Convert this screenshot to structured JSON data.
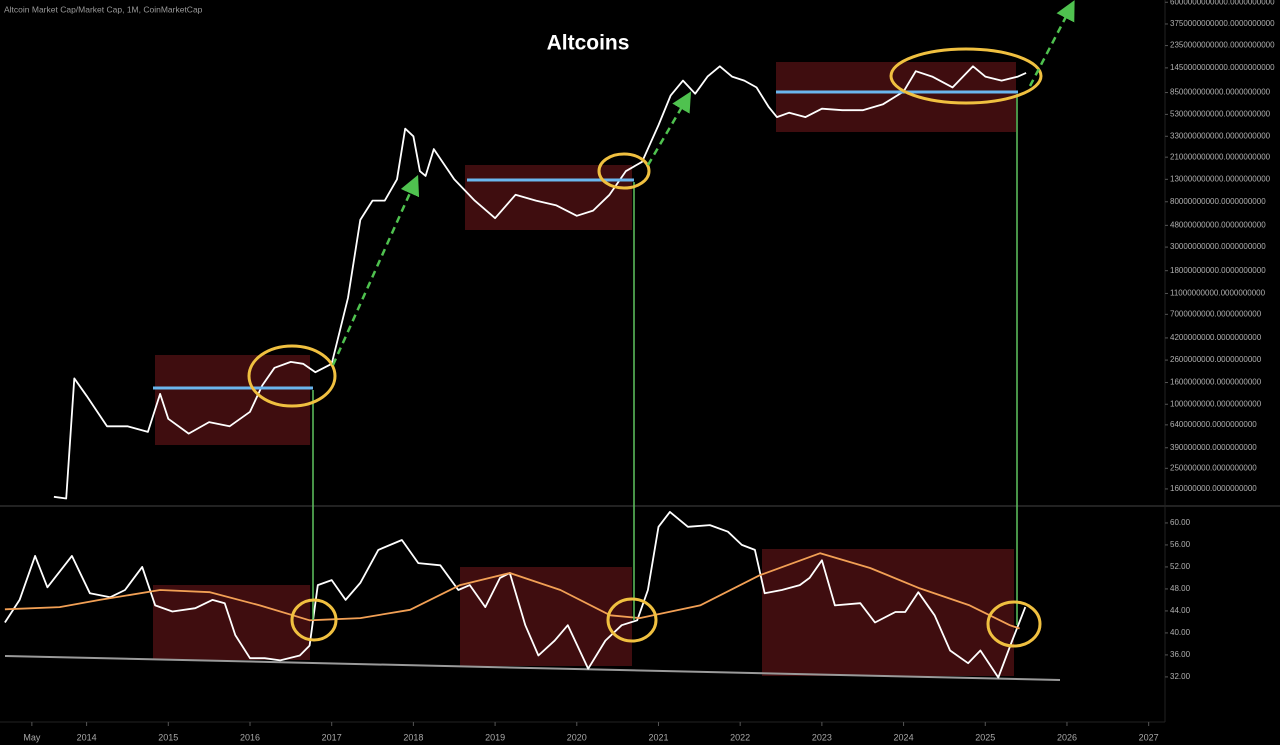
{
  "chart_data": [
    {
      "type": "line",
      "header": "Altcoin Market Cap/Market Cap, 1M, CoinMarketCap",
      "title": "Altcoins",
      "yscale": "log",
      "grid": false,
      "xlim": [
        2012.94,
        2027.2
      ],
      "ylim": [
        113000000,
        6300000000000
      ],
      "yticks": [
        {
          "value": 6000000000000,
          "label": "6000000000000.0000000000"
        },
        {
          "value": 3750000000000,
          "label": "3750000000000.0000000000"
        },
        {
          "value": 2350000000000,
          "label": "2350000000000.0000000000"
        },
        {
          "value": 1450000000000,
          "label": "1450000000000.0000000000"
        },
        {
          "value": 850000000000,
          "label": "850000000000.0000000000"
        },
        {
          "value": 530000000000,
          "label": "530000000000.0000000000"
        },
        {
          "value": 330000000000,
          "label": "330000000000.0000000000"
        },
        {
          "value": 210000000000,
          "label": "210000000000.0000000000"
        },
        {
          "value": 130000000000,
          "label": "130000000000.0000000000"
        },
        {
          "value": 80000000000,
          "label": "80000000000.0000000000"
        },
        {
          "value": 48000000000,
          "label": "48000000000.0000000000"
        },
        {
          "value": 30000000000,
          "label": "30000000000.0000000000"
        },
        {
          "value": 18000000000,
          "label": "18000000000.0000000000"
        },
        {
          "value": 11000000000,
          "label": "11000000000.0000000000"
        },
        {
          "value": 7000000000,
          "label": "7000000000.0000000000"
        },
        {
          "value": 4200000000,
          "label": "4200000000.0000000000"
        },
        {
          "value": 2600000000,
          "label": "2600000000.0000000000"
        },
        {
          "value": 1600000000,
          "label": "1600000000.0000000000"
        },
        {
          "value": 1000000000,
          "label": "1000000000.0000000000"
        },
        {
          "value": 640000000,
          "label": "640000000.0000000000"
        },
        {
          "value": 390000000,
          "label": "390000000.0000000000"
        },
        {
          "value": 250000000,
          "label": "250000000.0000000000"
        },
        {
          "value": 160000000,
          "label": "160000000.0000000000"
        }
      ],
      "series": [
        {
          "color": "#ffffff",
          "x": [
            2013.6,
            2013.75,
            2013.85,
            2014.0,
            2014.25,
            2014.5,
            2014.75,
            2014.9,
            2015.0,
            2015.25,
            2015.5,
            2015.75,
            2016.0,
            2016.15,
            2016.3,
            2016.5,
            2016.65,
            2016.8,
            2017.0,
            2017.2,
            2017.35,
            2017.5,
            2017.65,
            2017.8,
            2017.9,
            2018.0,
            2018.08,
            2018.15,
            2018.25,
            2018.5,
            2018.75,
            2019.0,
            2019.25,
            2019.5,
            2019.75,
            2020.0,
            2020.2,
            2020.4,
            2020.6,
            2020.8,
            2021.0,
            2021.15,
            2021.3,
            2021.45,
            2021.6,
            2021.75,
            2021.9,
            2022.05,
            2022.2,
            2022.35,
            2022.45,
            2022.6,
            2022.8,
            2023.0,
            2023.25,
            2023.5,
            2023.75,
            2024.0,
            2024.15,
            2024.35,
            2024.6,
            2024.85,
            2025.0,
            2025.2,
            2025.4,
            2025.5
          ],
          "values": [
            135000000,
            130000000,
            1750000000,
            1200000000,
            620000000,
            620000000,
            550000000,
            1250000000,
            730000000,
            530000000,
            680000000,
            620000000,
            850000000,
            1500000000,
            2200000000,
            2500000000,
            2400000000,
            2000000000,
            2400000000,
            10000000000,
            54000000000,
            82000000000,
            82000000000,
            130000000000,
            390000000000,
            330000000000,
            155000000000,
            140000000000,
            250000000000,
            130000000000,
            82000000000,
            56000000000,
            93000000000,
            82000000000,
            74000000000,
            59000000000,
            66000000000,
            93000000000,
            155000000000,
            190000000000,
            420000000000,
            800000000000,
            1100000000000,
            830000000000,
            1200000000000,
            1500000000000,
            1200000000000,
            1100000000000,
            950000000000,
            620000000000,
            500000000000,
            550000000000,
            500000000000,
            600000000000,
            580000000000,
            580000000000,
            660000000000,
            870000000000,
            1350000000000,
            1200000000000,
            950000000000,
            1500000000000,
            1200000000000,
            1100000000000,
            1200000000000,
            1300000000000
          ]
        }
      ]
    },
    {
      "type": "line",
      "grid": false,
      "xlim": [
        2012.94,
        2027.2
      ],
      "ylim": [
        23.8,
        62.9
      ],
      "yticks": [
        {
          "value": 60,
          "label": "60.00"
        },
        {
          "value": 56,
          "label": "56.00"
        },
        {
          "value": 52,
          "label": "52.00"
        },
        {
          "value": 48,
          "label": "48.00"
        },
        {
          "value": 44,
          "label": "44.00"
        },
        {
          "value": 40,
          "label": "40.00"
        },
        {
          "value": 36,
          "label": "36.00"
        },
        {
          "value": 32,
          "label": "32.00"
        }
      ],
      "xticks": [
        {
          "value": 2013.33,
          "label": "May"
        },
        2014,
        2015,
        2016,
        2017,
        2018,
        2019,
        2020,
        2021,
        2022,
        2023,
        2024,
        2025,
        2026,
        2027
      ],
      "series": [
        {
          "color": "#ffffff",
          "x": [
            2013.0,
            2013.18,
            2013.37,
            2013.52,
            2013.82,
            2014.04,
            2014.29,
            2014.47,
            2014.68,
            2014.84,
            2015.05,
            2015.33,
            2015.54,
            2015.69,
            2015.82,
            2016.0,
            2016.18,
            2016.37,
            2016.61,
            2016.73,
            2016.83,
            2017.0,
            2017.17,
            2017.35,
            2017.57,
            2017.86,
            2018.06,
            2018.33,
            2018.55,
            2018.69,
            2018.88,
            2019.06,
            2019.18,
            2019.37,
            2019.53,
            2019.73,
            2019.89,
            2020.14,
            2020.35,
            2020.55,
            2020.74,
            2020.87,
            2021.0,
            2021.14,
            2021.36,
            2021.63,
            2021.85,
            2022.02,
            2022.18,
            2022.3,
            2022.51,
            2022.73,
            2022.85,
            2023.0,
            2023.16,
            2023.47,
            2023.65,
            2023.9,
            2024.02,
            2024.18,
            2024.38,
            2024.57,
            2024.79,
            2024.94,
            2025.16,
            2025.33,
            2025.49
          ],
          "values": [
            41.9,
            46.0,
            54.0,
            48.3,
            54.0,
            47.2,
            46.5,
            47.8,
            52.0,
            45.0,
            43.9,
            44.5,
            46.0,
            45.4,
            39.6,
            35.4,
            35.4,
            35.0,
            35.9,
            37.7,
            48.7,
            49.6,
            46.0,
            49.1,
            55.1,
            56.9,
            52.7,
            52.3,
            47.8,
            48.7,
            44.7,
            50.0,
            50.9,
            41.4,
            35.9,
            38.6,
            41.4,
            33.5,
            38.6,
            41.4,
            42.3,
            47.8,
            59.3,
            62.0,
            59.3,
            59.6,
            58.4,
            56.0,
            55.1,
            47.2,
            47.8,
            48.7,
            50.0,
            53.2,
            45.0,
            45.4,
            41.9,
            43.8,
            43.8,
            47.4,
            43.2,
            36.8,
            34.5,
            36.8,
            31.9,
            38.6,
            44.7
          ]
        },
        {
          "color": "#f2a055",
          "x": [
            2013.0,
            2013.67,
            2014.16,
            2014.9,
            2015.51,
            2016.12,
            2016.73,
            2017.35,
            2017.96,
            2018.57,
            2019.18,
            2019.8,
            2020.41,
            2020.77,
            2021.51,
            2022.24,
            2022.98,
            2023.59,
            2024.2,
            2024.81,
            2025.3,
            2025.42
          ],
          "values": [
            44.3,
            44.7,
            46.0,
            47.8,
            47.4,
            45.0,
            42.3,
            42.7,
            44.2,
            48.7,
            50.9,
            47.8,
            43.2,
            42.7,
            45.0,
            50.5,
            54.5,
            51.8,
            48.1,
            45.0,
            41.4,
            40.8
          ]
        }
      ]
    }
  ]
}
